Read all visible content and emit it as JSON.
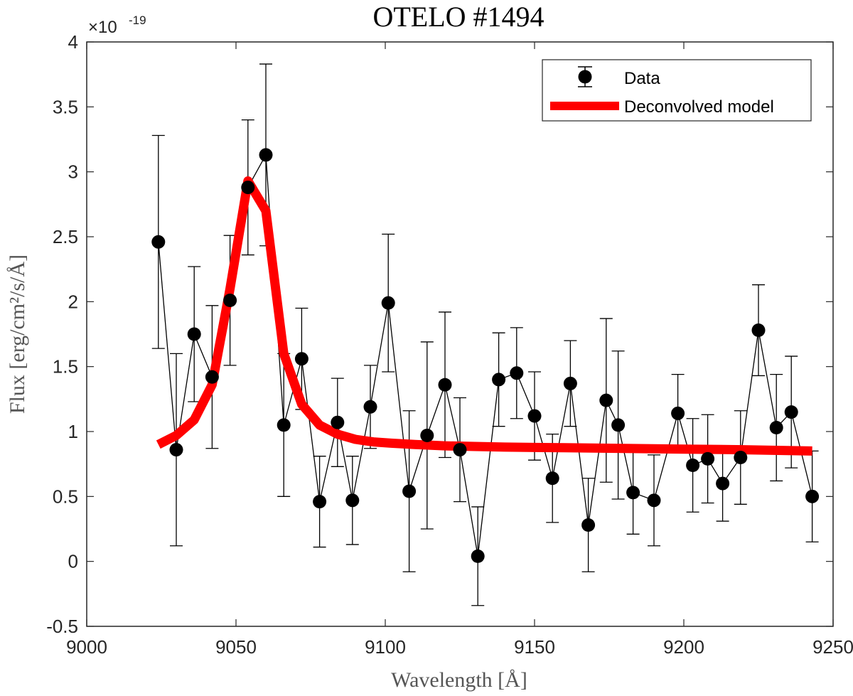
{
  "chart_data": {
    "type": "scatter",
    "title": "OTELO #1494",
    "xlabel": "Wavelength [Å]",
    "ylabel": "Flux [erg/cm²/s/Å]",
    "y_exponent_base": "×10",
    "y_exponent_power": "-19",
    "xlim": [
      9000,
      9250
    ],
    "ylim": [
      -0.5,
      4
    ],
    "xticks": [
      9000,
      9050,
      9100,
      9150,
      9200,
      9250
    ],
    "xtick_labels": [
      "9000",
      "9050",
      "9100",
      "9150",
      "9200",
      "9250"
    ],
    "yticks": [
      -0.5,
      0,
      0.5,
      1,
      1.5,
      2,
      2.5,
      3,
      3.5,
      4
    ],
    "ytick_labels": [
      "-0.5",
      "0",
      "0.5",
      "1",
      "1.5",
      "2",
      "2.5",
      "3",
      "3.5",
      "4"
    ],
    "legend_position": "top-right",
    "series": [
      {
        "name": "Data",
        "style": "markers with error bars, thin connecting line",
        "color": "#000000",
        "x": [
          9024,
          9030,
          9036,
          9042,
          9048,
          9054,
          9060,
          9066,
          9072,
          9078,
          9084,
          9089,
          9095,
          9101,
          9108,
          9114,
          9120,
          9125,
          9131,
          9138,
          9144,
          9150,
          9156,
          9162,
          9168,
          9174,
          9178,
          9183,
          9190,
          9198,
          9203,
          9208,
          9213,
          9219,
          9225,
          9231,
          9236,
          9243
        ],
        "y": [
          2.46,
          0.86,
          1.75,
          1.42,
          2.01,
          2.88,
          3.13,
          1.05,
          1.56,
          0.46,
          1.07,
          0.47,
          1.19,
          1.99,
          0.54,
          0.97,
          1.36,
          0.86,
          0.04,
          1.4,
          1.45,
          1.12,
          0.64,
          1.37,
          0.28,
          1.24,
          1.05,
          0.53,
          0.47,
          1.14,
          0.74,
          0.79,
          0.6,
          0.8,
          1.78,
          1.03,
          1.15,
          0.5
        ],
        "yerr": [
          0.82,
          0.74,
          0.52,
          0.55,
          0.5,
          0.52,
          0.7,
          0.55,
          0.39,
          0.35,
          0.34,
          0.34,
          0.32,
          0.53,
          0.62,
          0.72,
          0.56,
          0.4,
          0.38,
          0.36,
          0.35,
          0.34,
          0.34,
          0.33,
          0.36,
          0.63,
          0.57,
          0.32,
          0.35,
          0.3,
          0.36,
          0.34,
          0.29,
          0.36,
          0.35,
          0.41,
          0.43,
          0.35
        ]
      },
      {
        "name": "Deconvolved model",
        "style": "thick line",
        "color": "#ff0000",
        "x": [
          9024,
          9030,
          9036,
          9042,
          9048,
          9054,
          9060,
          9066,
          9072,
          9078,
          9084,
          9090,
          9096,
          9102,
          9110,
          9120,
          9130,
          9140,
          9160,
          9180,
          9200,
          9220,
          9243
        ],
        "y": [
          0.9,
          0.97,
          1.09,
          1.36,
          2.1,
          2.93,
          2.7,
          1.6,
          1.21,
          1.05,
          0.98,
          0.94,
          0.92,
          0.91,
          0.9,
          0.89,
          0.885,
          0.88,
          0.875,
          0.87,
          0.865,
          0.86,
          0.85
        ]
      }
    ]
  }
}
